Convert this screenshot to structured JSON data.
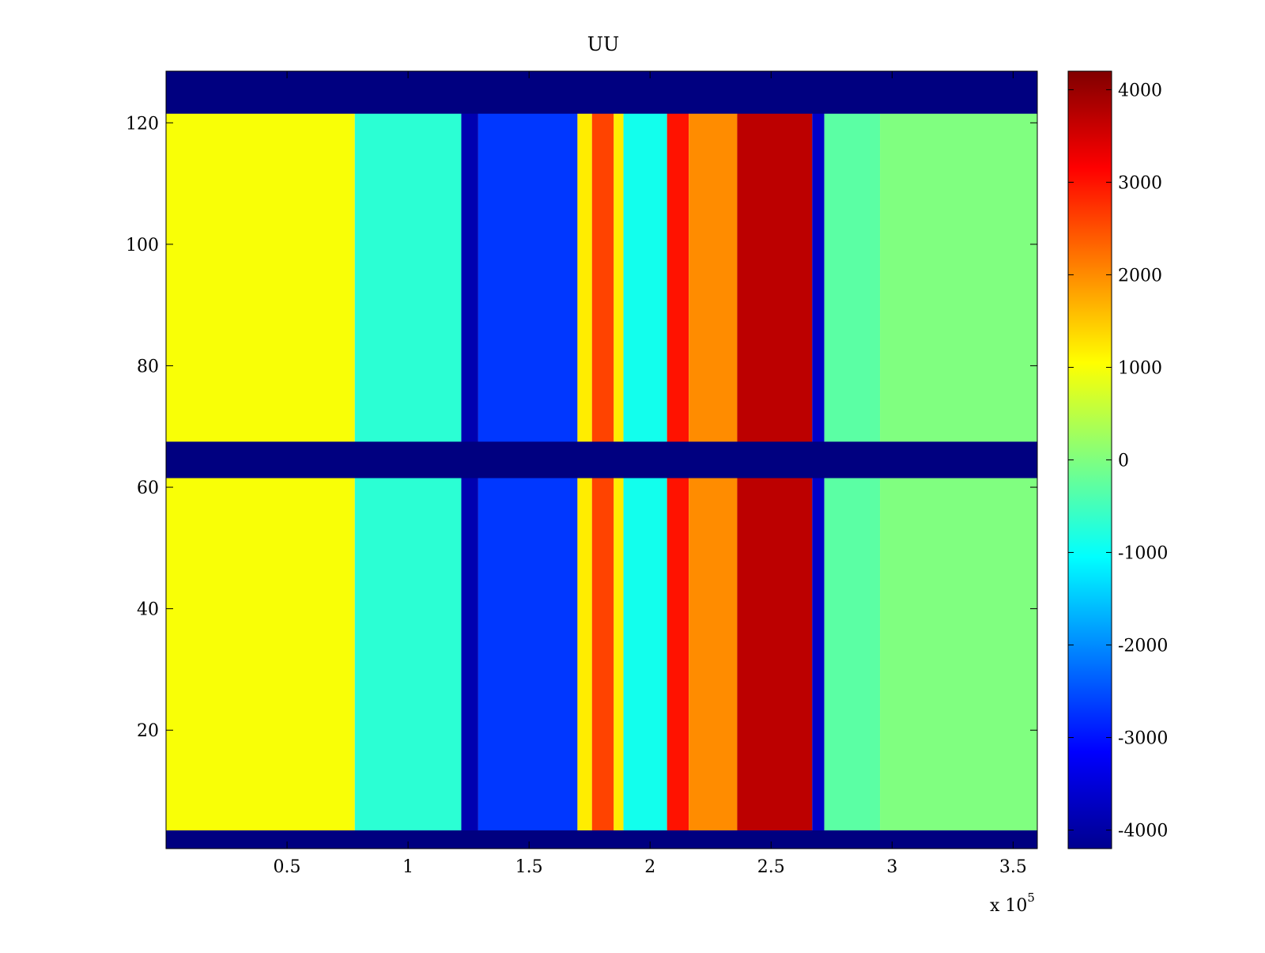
{
  "chart_data": {
    "type": "heatmap",
    "title": "UU",
    "xlabel": "",
    "ylabel": "",
    "x_multiplier": "x 10",
    "x_exponent": "5",
    "xlim": [
      0,
      3.6
    ],
    "ylim": [
      0.5,
      128.5
    ],
    "x_ticks": [
      "0.5",
      "1",
      "1.5",
      "2",
      "2.5",
      "3",
      "3.5"
    ],
    "x_tick_values": [
      0.5,
      1,
      1.5,
      2,
      2.5,
      3,
      3.5
    ],
    "y_ticks": [
      "20",
      "40",
      "60",
      "80",
      "100",
      "120"
    ],
    "y_tick_values": [
      20,
      40,
      60,
      80,
      100,
      120
    ],
    "colorbar": {
      "colormap": "jet",
      "clim": [
        -4200,
        4200
      ],
      "ticks": [
        "4000",
        "3000",
        "2000",
        "1000",
        "0",
        "-1000",
        "-2000",
        "-3000",
        "-4000"
      ],
      "tick_values": [
        4000,
        3000,
        2000,
        1000,
        0,
        -1000,
        -2000,
        -3000,
        -4000
      ]
    },
    "masked_row_bands": [
      [
        0.5,
        3.5
      ],
      [
        61.5,
        67.5
      ],
      [
        121.5,
        128.5
      ]
    ],
    "masked_value": -4200,
    "x_segments": [
      {
        "x": [
          0.0,
          0.78
        ],
        "value": 1000
      },
      {
        "x": [
          0.78,
          1.22
        ],
        "value": -700
      },
      {
        "x": [
          1.22,
          1.29
        ],
        "value": -3800
      },
      {
        "x": [
          1.29,
          1.7
        ],
        "value": -2700
      },
      {
        "x": [
          1.7,
          1.76
        ],
        "value": 1200
      },
      {
        "x": [
          1.76,
          1.85
        ],
        "value": 2600
      },
      {
        "x": [
          1.85,
          1.89
        ],
        "value": 1200
      },
      {
        "x": [
          1.89,
          2.07
        ],
        "value": -900
      },
      {
        "x": [
          2.07,
          2.16
        ],
        "value": 3000
      },
      {
        "x": [
          2.16,
          2.36
        ],
        "value": 2000
      },
      {
        "x": [
          2.36,
          2.67
        ],
        "value": 3700
      },
      {
        "x": [
          2.67,
          2.72
        ],
        "value": -3600
      },
      {
        "x": [
          2.72,
          2.95
        ],
        "value": -300
      },
      {
        "x": [
          2.95,
          3.6
        ],
        "value": 0
      }
    ]
  }
}
